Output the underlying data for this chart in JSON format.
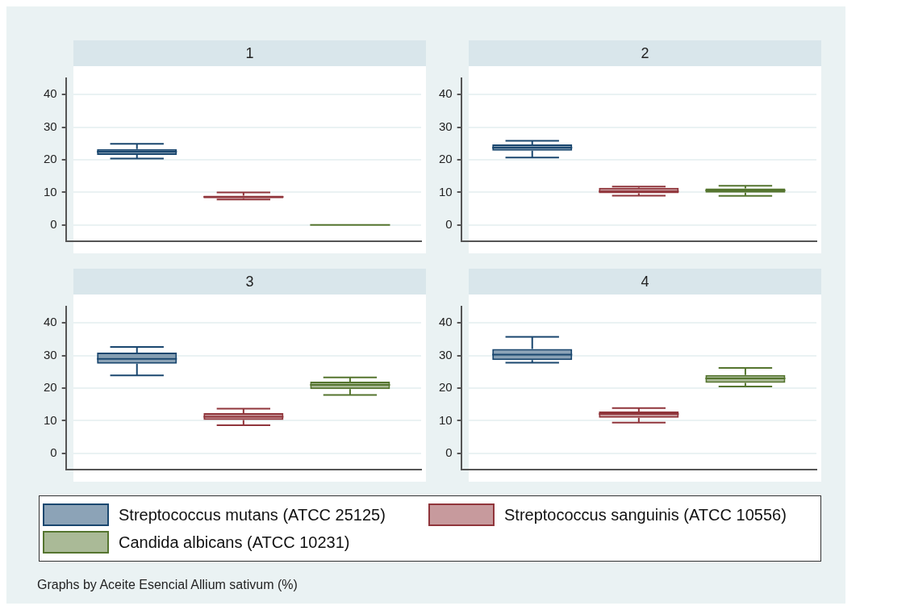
{
  "chart_data": [
    {
      "type": "box",
      "title": "1",
      "categories": [
        null
      ],
      "ylim": [
        -5,
        45
      ],
      "yticks": [
        0,
        10,
        20,
        30,
        40
      ],
      "grid": "y",
      "tick_labels": "y",
      "legend": "bottom",
      "annotations": [
        "Graphs by Aceite Esencial Allium sativum (%)"
      ],
      "series": [
        {
          "name": "Streptococcus mutans (ATCC 25125)",
          "color": "#1a476f",
          "boxes": [
            {
              "low": 20.4,
              "q1": 21.5,
              "median": 22.5,
              "q3": 23.3,
              "high": 24.9
            }
          ]
        },
        {
          "name": "Streptococcus sanguinis (ATCC 10556)",
          "color": "#90353b",
          "boxes": [
            {
              "low": 7.8,
              "q1": 8.2,
              "median": 8.6,
              "q3": 9.0,
              "high": 10.0
            }
          ]
        },
        {
          "name": "Candida albicans (ATCC 10231)",
          "color": "#55752f",
          "boxes": [
            {
              "low": 0,
              "q1": 0,
              "median": 0,
              "q3": 0,
              "high": 0
            }
          ]
        }
      ]
    },
    {
      "type": "box",
      "title": "2",
      "categories": [
        null
      ],
      "ylim": [
        -5,
        45
      ],
      "yticks": [
        0,
        10,
        20,
        30,
        40
      ],
      "grid": "y",
      "tick_labels": "y",
      "series": [
        {
          "color": "#1a476f",
          "boxes": [
            {
              "low": 20.7,
              "q1": 22.8,
              "median": 23.7,
              "q3": 24.7,
              "high": 25.8
            }
          ]
        },
        {
          "color": "#90353b",
          "boxes": [
            {
              "low": 9.0,
              "q1": 9.7,
              "median": 10.3,
              "q3": 11.4,
              "high": 11.8
            }
          ]
        },
        {
          "color": "#55752f",
          "boxes": [
            {
              "low": 8.9,
              "q1": 9.9,
              "median": 10.6,
              "q3": 11.2,
              "high": 12.0
            }
          ]
        }
      ]
    },
    {
      "type": "box",
      "title": "3",
      "categories": [
        null
      ],
      "ylim": [
        -5,
        45
      ],
      "yticks": [
        0,
        10,
        20,
        30,
        40
      ],
      "grid": "y",
      "tick_labels": "y",
      "series": [
        {
          "color": "#1a476f",
          "boxes": [
            {
              "low": 23.9,
              "q1": 27.5,
              "median": 29.0,
              "q3": 30.9,
              "high": 32.6
            }
          ]
        },
        {
          "color": "#90353b",
          "boxes": [
            {
              "low": 8.6,
              "q1": 10.2,
              "median": 11.2,
              "q3": 12.3,
              "high": 13.7
            }
          ]
        },
        {
          "color": "#55752f",
          "boxes": [
            {
              "low": 17.9,
              "q1": 19.7,
              "median": 21.0,
              "q3": 22.0,
              "high": 23.3
            }
          ]
        }
      ]
    },
    {
      "type": "box",
      "title": "4",
      "categories": [
        null
      ],
      "ylim": [
        -5,
        45
      ],
      "yticks": [
        0,
        10,
        20,
        30,
        40
      ],
      "grid": "y",
      "tick_labels": "y",
      "series": [
        {
          "color": "#1a476f",
          "boxes": [
            {
              "low": 27.8,
              "q1": 28.6,
              "median": 30.3,
              "q3": 32.0,
              "high": 35.7
            }
          ]
        },
        {
          "color": "#90353b",
          "boxes": [
            {
              "low": 9.4,
              "q1": 10.9,
              "median": 12.1,
              "q3": 12.8,
              "high": 13.9
            }
          ]
        },
        {
          "color": "#55752f",
          "boxes": [
            {
              "low": 20.5,
              "q1": 21.6,
              "median": 23.0,
              "q3": 24.0,
              "high": 26.2
            }
          ]
        }
      ]
    }
  ]
}
